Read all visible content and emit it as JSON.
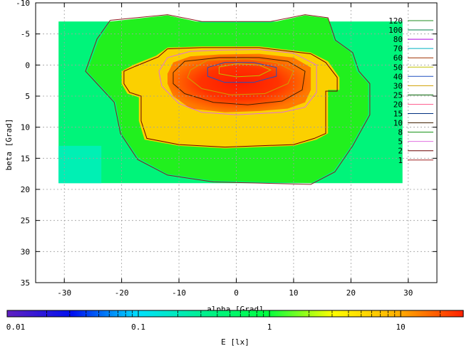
{
  "chart_data": {
    "type": "heatmap",
    "xlabel": "alpha [Grad]",
    "ylabel": "beta [Grad]",
    "xlim": [
      -35,
      35
    ],
    "ylim": [
      -10,
      35
    ],
    "y_reversed": true,
    "xticks": [
      -30,
      -20,
      -10,
      0,
      10,
      20,
      30
    ],
    "yticks": [
      -10,
      -5,
      0,
      5,
      10,
      15,
      20,
      25,
      30,
      35
    ],
    "grid": true,
    "data_extent": {
      "alpha": [
        -31,
        29
      ],
      "beta": [
        -7,
        19
      ]
    },
    "contour_legend_position": "top-right",
    "contour_levels": [
      {
        "name": "120",
        "color": "#228b22"
      },
      {
        "name": "100",
        "color": "#00804a"
      },
      {
        "name": "80",
        "color": "#b000e0"
      },
      {
        "name": "70",
        "color": "#00b0c0"
      },
      {
        "name": "60",
        "color": "#a03000"
      },
      {
        "name": "50",
        "color": "#c0c000"
      },
      {
        "name": "40",
        "color": "#2050c0"
      },
      {
        "name": "30",
        "color": "#d0a000"
      },
      {
        "name": "25",
        "color": "#006000"
      },
      {
        "name": "20",
        "color": "#ff6090"
      },
      {
        "name": "15",
        "color": "#003080"
      },
      {
        "name": "10",
        "color": "#402000"
      },
      {
        "name": "8",
        "color": "#109010"
      },
      {
        "name": "5",
        "color": "#e070e0"
      },
      {
        "name": "2",
        "color": "#6a0000"
      },
      {
        "name": "1",
        "color": "#a02020"
      }
    ],
    "colorbar": {
      "label": "E [lx]",
      "scale": "log",
      "range": [
        0.01,
        30
      ],
      "ticks": [
        {
          "value": 0.01,
          "label": "0.01"
        },
        {
          "value": 0.1,
          "label": "0.1"
        },
        {
          "value": 1,
          "label": "1"
        },
        {
          "value": 10,
          "label": "10"
        }
      ],
      "color_stops": [
        "#6020c0",
        "#0010f0",
        "#00e0ff",
        "#00f090",
        "#00ff40",
        "#ffff00",
        "#ffb000",
        "#ff2000"
      ]
    }
  }
}
